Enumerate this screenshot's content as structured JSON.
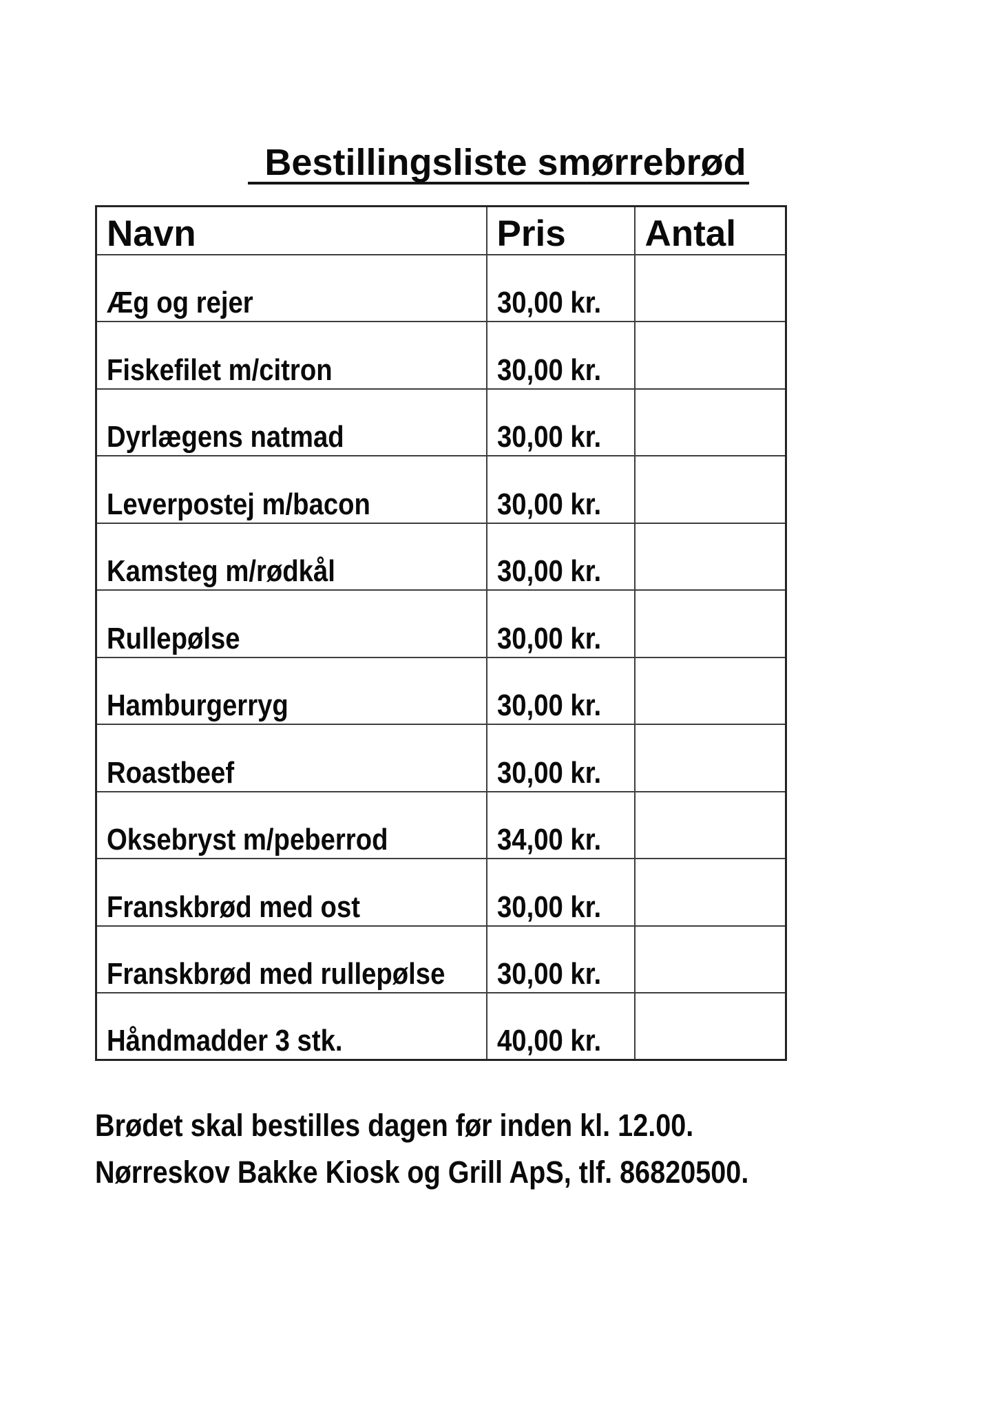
{
  "title": "Bestillingsliste smørrebrød",
  "table": {
    "headers": {
      "name": "Navn",
      "price": "Pris",
      "qty": "Antal"
    },
    "rows": [
      {
        "name": "Æg og rejer",
        "price": "30,00 kr.",
        "qty": ""
      },
      {
        "name": "Fiskefilet m/citron",
        "price": "30,00 kr.",
        "qty": ""
      },
      {
        "name": "Dyrlægens natmad",
        "price": "30,00 kr.",
        "qty": ""
      },
      {
        "name": "Leverpostej m/bacon",
        "price": "30,00 kr.",
        "qty": ""
      },
      {
        "name": "Kamsteg m/rødkål",
        "price": "30,00 kr.",
        "qty": ""
      },
      {
        "name": "Rullepølse",
        "price": "30,00 kr.",
        "qty": ""
      },
      {
        "name": "Hamburgerryg",
        "price": "30,00 kr.",
        "qty": ""
      },
      {
        "name": "Roastbeef",
        "price": "30,00 kr.",
        "qty": ""
      },
      {
        "name": "Oksebryst m/peberrod",
        "price": "34,00 kr.",
        "qty": ""
      },
      {
        "name": "Franskbrød med ost",
        "price": "30,00 kr.",
        "qty": ""
      },
      {
        "name": "Franskbrød med rullepølse",
        "price": "30,00 kr.",
        "qty": ""
      },
      {
        "name": "Håndmadder 3 stk.",
        "price": "40,00 kr.",
        "qty": ""
      }
    ]
  },
  "footer": {
    "line1": "Brødet skal bestilles dagen før inden kl. 12.00.",
    "line2": "Nørreskov Bakke Kiosk og Grill ApS, tlf. 86820500."
  },
  "colors": {
    "background": "#ffffff",
    "text": "#0a0a0a",
    "border_outer": "#242424",
    "border_inner": "#3e3e3e"
  }
}
